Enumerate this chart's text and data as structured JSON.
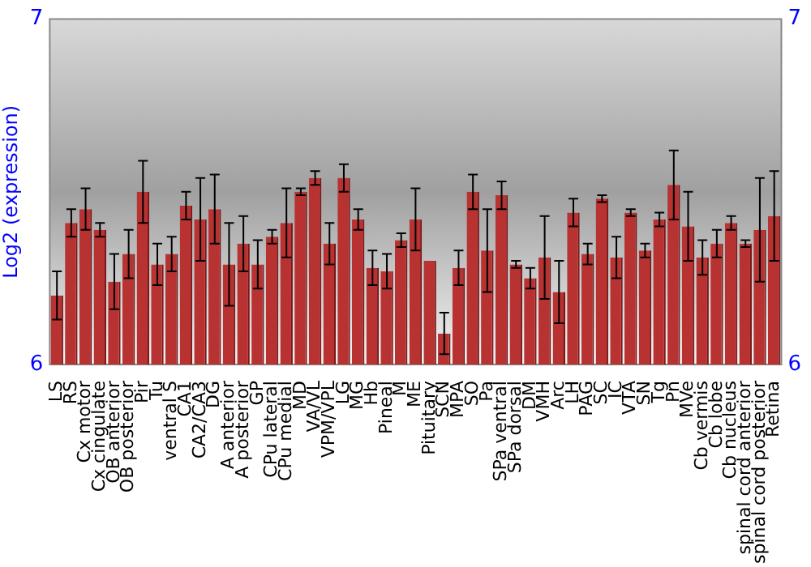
{
  "chart_data": {
    "type": "bar",
    "ylabel": "Log2 (expression)",
    "categories": [
      "LS",
      "RS",
      "Cx motor",
      "Cx cingulate",
      "OB anterior",
      "OB posterior",
      "Pir",
      "Tu",
      "ventral S",
      "CA1",
      "CA2/CA3",
      "DG",
      "A anterior",
      "A posterior",
      "GP",
      "CPu lateral",
      "CPu medial",
      "MD",
      "VA/VL",
      "VPM/VPL",
      "LG",
      "MG",
      "Hb",
      "Pineal",
      "M",
      "ME",
      "Pituitary",
      "SCN",
      "MPA",
      "SO",
      "Pa",
      "SPa ventral",
      "SPa dorsal",
      "DM",
      "VMH",
      "Arc",
      "LH",
      "PAG",
      "SC",
      "IC",
      "VTA",
      "SN",
      "Tg",
      "Pn",
      "MVe",
      "Cb vermis",
      "Cb lobe",
      "Cb nucleus",
      "spinal cord anterior",
      "spinal cord posterior",
      "Retina"
    ],
    "values": [
      6.2,
      6.41,
      6.45,
      6.39,
      6.24,
      6.32,
      6.5,
      6.29,
      6.32,
      6.46,
      6.42,
      6.45,
      6.29,
      6.35,
      6.29,
      6.37,
      6.41,
      6.5,
      6.54,
      6.35,
      6.54,
      6.42,
      6.28,
      6.27,
      6.36,
      6.42,
      6.3,
      6.09,
      6.28,
      6.5,
      6.33,
      6.49,
      6.29,
      6.25,
      6.31,
      6.21,
      6.44,
      6.32,
      6.48,
      6.31,
      6.44,
      6.33,
      6.42,
      6.52,
      6.4,
      6.31,
      6.35,
      6.41,
      6.35,
      6.39,
      6.43
    ],
    "errors": [
      0.07,
      0.04,
      0.06,
      0.02,
      0.08,
      0.07,
      0.09,
      0.06,
      0.05,
      0.04,
      0.12,
      0.1,
      0.12,
      0.08,
      0.07,
      0.02,
      0.1,
      0.01,
      0.02,
      0.06,
      0.04,
      0.03,
      0.05,
      0.05,
      0.02,
      0.09,
      null,
      0.06,
      0.05,
      0.05,
      0.12,
      0.04,
      0.01,
      0.03,
      0.12,
      0.09,
      0.04,
      0.03,
      0.01,
      0.06,
      0.01,
      0.02,
      0.02,
      0.1,
      0.1,
      0.05,
      0.04,
      0.02,
      0.01,
      0.15,
      0.13
    ],
    "color": "#b83232",
    "ylim": [
      6,
      7
    ],
    "yticks": [
      6,
      7
    ],
    "y2lim": [
      6,
      7
    ],
    "y2ticks": [
      6,
      7
    ],
    "grid": false,
    "legend": false
  }
}
